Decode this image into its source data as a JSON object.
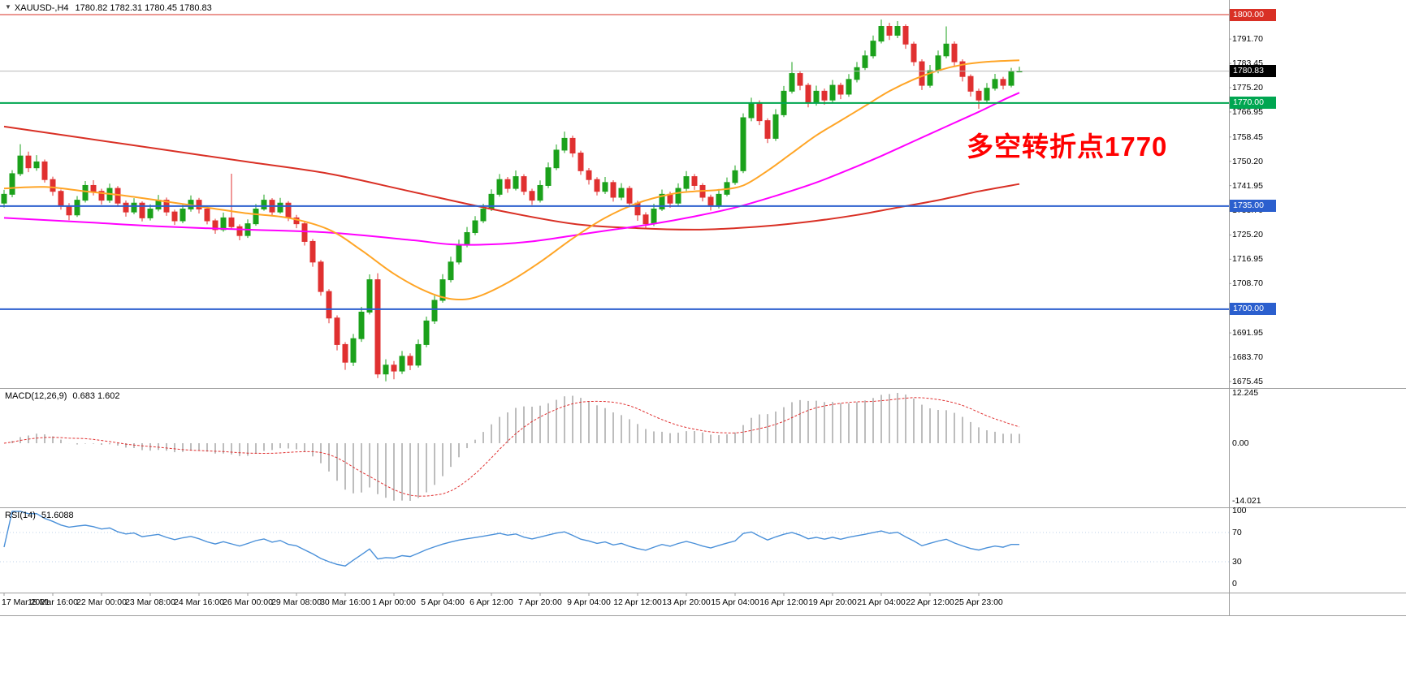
{
  "window": {
    "title_icon": "▼",
    "symbol": "XAUUSD-,H4",
    "ohlc_line": "1780.82 1782.31 1780.45 1780.83"
  },
  "annotation": {
    "text": "多空转折点1770",
    "color": "#ff0000"
  },
  "colors": {
    "bg": "#ffffff",
    "candle_up": "#1ba11b",
    "candle_down": "#e03030",
    "ma_slow": "#d93025",
    "ma_mid": "#ff00ff",
    "ma_fast": "#ffa526",
    "line_1800": "#d93025",
    "line_1770": "#00a651",
    "line_blue": "#2b5fce",
    "line_current": "#b8b8b8",
    "current_box": "#000000",
    "macd_hist": "#bdbdbd",
    "macd_signal": "#e03030",
    "rsi_line": "#4a90d9",
    "rsi_levels": "#bcd2ea",
    "separator": "#9e9e9e",
    "axis_text": "#000000"
  },
  "price_axis": {
    "tick_labels": [
      {
        "price": 1791.7,
        "label": "1791.70"
      },
      {
        "price": 1783.45,
        "label": "1783.45"
      },
      {
        "price": 1775.2,
        "label": "1775.20"
      },
      {
        "price": 1766.95,
        "label": "1766.95"
      },
      {
        "price": 1758.45,
        "label": "1758.45"
      },
      {
        "price": 1750.2,
        "label": "1750.20"
      },
      {
        "price": 1741.95,
        "label": "1741.95"
      },
      {
        "price": 1733.7,
        "label": "1733.70"
      },
      {
        "price": 1725.2,
        "label": "1725.20"
      },
      {
        "price": 1716.95,
        "label": "1716.95"
      },
      {
        "price": 1708.7,
        "label": "1708.70"
      },
      {
        "price": 1691.95,
        "label": "1691.95"
      },
      {
        "price": 1683.7,
        "label": "1683.70"
      },
      {
        "price": 1675.45,
        "label": "1675.45"
      }
    ],
    "boxes": [
      {
        "price": 1800.0,
        "label": "1800.00",
        "bg": "#d93025",
        "kind": "level"
      },
      {
        "price": 1780.83,
        "label": "1780.83",
        "bg": "#000000",
        "kind": "current"
      },
      {
        "price": 1770.0,
        "label": "1770.00",
        "bg": "#00a651",
        "kind": "level"
      },
      {
        "price": 1735.0,
        "label": "1735.00",
        "bg": "#2b5fce",
        "kind": "level"
      },
      {
        "price": 1700.0,
        "label": "1700.00",
        "bg": "#2b5fce",
        "kind": "level"
      }
    ]
  },
  "time_axis": {
    "labels": [
      "17 Mar 2021",
      "18 Mar 16:00",
      "22 Mar 00:00",
      "23 Mar 08:00",
      "24 Mar 16:00",
      "26 Mar 00:00",
      "29 Mar 08:00",
      "30 Mar 16:00",
      "1 Apr 00:00",
      "5 Apr 04:00",
      "6 Apr 12:00",
      "7 Apr 20:00",
      "9 Apr 04:00",
      "12 Apr 12:00",
      "13 Apr 20:00",
      "15 Apr 04:00",
      "16 Apr 12:00",
      "19 Apr 20:00",
      "21 Apr 04:00",
      "22 Apr 12:00",
      "25 Apr 23:00"
    ]
  },
  "indicators": {
    "macd": {
      "label": "MACD(12,26,9)",
      "values": "0.683 1.602",
      "axis_max": "12.245",
      "axis_zero": "0.00",
      "axis_min": "-14.021"
    },
    "rsi": {
      "label": "RSI(14)",
      "value": "51.6088",
      "axis": [
        "100",
        "70",
        "30",
        "0"
      ]
    }
  },
  "chart_data": {
    "type": "candlestick",
    "title": "XAUUSD-,H4",
    "x_tick_labels": [
      "17 Mar 2021",
      "18 Mar 16:00",
      "22 Mar 00:00",
      "23 Mar 08:00",
      "24 Mar 16:00",
      "26 Mar 00:00",
      "29 Mar 08:00",
      "30 Mar 16:00",
      "1 Apr 00:00",
      "5 Apr 04:00",
      "6 Apr 12:00",
      "7 Apr 20:00",
      "9 Apr 04:00",
      "12 Apr 12:00",
      "13 Apr 20:00",
      "15 Apr 04:00",
      "16 Apr 12:00",
      "19 Apr 20:00",
      "21 Apr 04:00",
      "22 Apr 12:00",
      "25 Apr 23:00"
    ],
    "x_tick_step": 6,
    "ylim": [
      1675.45,
      1801.5
    ],
    "y_axis_side": "right",
    "grid": false,
    "candles": [
      [
        1736,
        1740.5,
        1734.5,
        1739
      ],
      [
        1739,
        1747.2,
        1738,
        1746
      ],
      [
        1746,
        1756,
        1745.2,
        1752
      ],
      [
        1752,
        1753.5,
        1746.5,
        1748
      ],
      [
        1748,
        1752.3,
        1747,
        1750
      ],
      [
        1750,
        1750.8,
        1743,
        1744
      ],
      [
        1744,
        1745,
        1738.5,
        1740
      ],
      [
        1740,
        1740.6,
        1733.8,
        1735
      ],
      [
        1735,
        1736,
        1730.2,
        1732
      ],
      [
        1732,
        1738.4,
        1731.3,
        1737
      ],
      [
        1737,
        1743.5,
        1736.2,
        1742
      ],
      [
        1742,
        1743.8,
        1738.6,
        1740
      ],
      [
        1740,
        1740.9,
        1735.5,
        1737
      ],
      [
        1737,
        1742.6,
        1736.1,
        1741
      ],
      [
        1741,
        1741.8,
        1734.8,
        1736
      ],
      [
        1736,
        1736.9,
        1731.4,
        1733
      ],
      [
        1733,
        1737.7,
        1732.2,
        1736
      ],
      [
        1736,
        1736.6,
        1729.8,
        1731
      ],
      [
        1731,
        1735.6,
        1730.1,
        1734
      ],
      [
        1734,
        1738.8,
        1733.2,
        1737
      ],
      [
        1737,
        1737.9,
        1731.7,
        1733
      ],
      [
        1733,
        1733.8,
        1728.6,
        1730
      ],
      [
        1730,
        1735.4,
        1729.2,
        1734
      ],
      [
        1734,
        1738.6,
        1733.1,
        1737
      ],
      [
        1737,
        1737.8,
        1732.5,
        1734
      ],
      [
        1734,
        1734.9,
        1728.8,
        1730
      ],
      [
        1730,
        1730.7,
        1725.6,
        1727
      ],
      [
        1727,
        1732.8,
        1726.3,
        1731
      ],
      [
        1731,
        1746,
        1727,
        1728
      ],
      [
        1728,
        1728.8,
        1723.4,
        1725
      ],
      [
        1725,
        1730.5,
        1724.2,
        1729
      ],
      [
        1729,
        1735.7,
        1728.3,
        1734
      ],
      [
        1734,
        1738.9,
        1733.4,
        1737
      ],
      [
        1737,
        1737.7,
        1731.8,
        1733
      ],
      [
        1733,
        1737.8,
        1732.4,
        1736
      ],
      [
        1736,
        1736.7,
        1729.9,
        1731
      ],
      [
        1731,
        1732,
        1727.5,
        1729
      ],
      [
        1729,
        1729.6,
        1721.6,
        1723
      ],
      [
        1723,
        1723.8,
        1714.4,
        1716
      ],
      [
        1716,
        1716.7,
        1704.6,
        1706
      ],
      [
        1706,
        1706.8,
        1695.2,
        1697
      ],
      [
        1697,
        1697.9,
        1686,
        1688
      ],
      [
        1688,
        1688.8,
        1679.4,
        1682
      ],
      [
        1682,
        1691.6,
        1680.7,
        1690
      ],
      [
        1690,
        1700.8,
        1688.9,
        1699
      ],
      [
        1699,
        1711.8,
        1698.2,
        1710
      ],
      [
        1710,
        1712.2,
        1676.6,
        1678
      ],
      [
        1678,
        1683,
        1675.5,
        1681
      ],
      [
        1681,
        1682.4,
        1676.2,
        1679
      ],
      [
        1679,
        1685.8,
        1678,
        1684
      ],
      [
        1684,
        1685,
        1679.3,
        1681
      ],
      [
        1681,
        1689.7,
        1680.2,
        1688
      ],
      [
        1688,
        1697.5,
        1687.1,
        1696
      ],
      [
        1696,
        1704.6,
        1695,
        1703
      ],
      [
        1703,
        1711.9,
        1702.2,
        1710
      ],
      [
        1710,
        1717.8,
        1709.1,
        1716
      ],
      [
        1716,
        1723.6,
        1715.2,
        1722
      ],
      [
        1722,
        1727.9,
        1721,
        1726
      ],
      [
        1726,
        1731.6,
        1725.1,
        1730
      ],
      [
        1730,
        1735.8,
        1729.2,
        1734
      ],
      [
        1734,
        1740.7,
        1733.3,
        1739
      ],
      [
        1739,
        1745.9,
        1738.2,
        1744
      ],
      [
        1744,
        1744.9,
        1739.5,
        1741
      ],
      [
        1741,
        1747.1,
        1740.3,
        1745
      ],
      [
        1745,
        1745.8,
        1738.8,
        1740
      ],
      [
        1740,
        1740.9,
        1735.4,
        1737
      ],
      [
        1737,
        1743.7,
        1736.2,
        1742
      ],
      [
        1742,
        1749.8,
        1741.1,
        1748
      ],
      [
        1748,
        1755.9,
        1747.2,
        1754
      ],
      [
        1754,
        1760.3,
        1753,
        1758
      ],
      [
        1758,
        1758.9,
        1751.6,
        1753
      ],
      [
        1753,
        1753.8,
        1745.6,
        1747
      ],
      [
        1747,
        1747.9,
        1742.3,
        1744
      ],
      [
        1744,
        1744.8,
        1738.6,
        1740
      ],
      [
        1740,
        1744.9,
        1739.1,
        1743
      ],
      [
        1743,
        1743.8,
        1736.5,
        1738
      ],
      [
        1738,
        1742.8,
        1737,
        1741
      ],
      [
        1741,
        1741.9,
        1734.6,
        1736
      ],
      [
        1736,
        1736.8,
        1730,
        1732
      ],
      [
        1732,
        1732.9,
        1727.4,
        1729
      ],
      [
        1729,
        1735.8,
        1728.2,
        1734
      ],
      [
        1734,
        1740.6,
        1733.3,
        1739
      ],
      [
        1739,
        1739.9,
        1734.4,
        1736
      ],
      [
        1736,
        1742.7,
        1735.2,
        1741
      ],
      [
        1741,
        1746.9,
        1740.1,
        1745
      ],
      [
        1745,
        1745.9,
        1740.5,
        1742
      ],
      [
        1742,
        1742.8,
        1736.6,
        1738
      ],
      [
        1738,
        1738.9,
        1733.5,
        1735
      ],
      [
        1735,
        1740.8,
        1734.2,
        1739
      ],
      [
        1739,
        1744.7,
        1738.3,
        1743
      ],
      [
        1743,
        1748.8,
        1742.2,
        1747
      ],
      [
        1747,
        1766.5,
        1746.2,
        1765
      ],
      [
        1765,
        1771.8,
        1763.8,
        1770
      ],
      [
        1770,
        1770.9,
        1762.5,
        1764
      ],
      [
        1764,
        1764.8,
        1756.4,
        1758
      ],
      [
        1758,
        1767.9,
        1757.1,
        1766
      ],
      [
        1766,
        1775.8,
        1765.2,
        1774
      ],
      [
        1774,
        1783.9,
        1773.2,
        1780
      ],
      [
        1780,
        1780.9,
        1774.3,
        1776
      ],
      [
        1776,
        1776.8,
        1768.5,
        1770
      ],
      [
        1770,
        1775.9,
        1769.1,
        1774
      ],
      [
        1774,
        1774.9,
        1769.4,
        1771
      ],
      [
        1771,
        1777.8,
        1770.2,
        1776
      ],
      [
        1776,
        1776.9,
        1771.3,
        1773
      ],
      [
        1773,
        1779.8,
        1772.1,
        1778
      ],
      [
        1778,
        1783.9,
        1777,
        1782
      ],
      [
        1782,
        1787.8,
        1781.2,
        1786
      ],
      [
        1786,
        1792.9,
        1785.1,
        1791
      ],
      [
        1791,
        1798.3,
        1790.2,
        1796
      ],
      [
        1796,
        1797.2,
        1791.4,
        1793
      ],
      [
        1793,
        1797.8,
        1792,
        1796
      ],
      [
        1796,
        1796.7,
        1788.4,
        1790
      ],
      [
        1790,
        1790.8,
        1782.6,
        1784
      ],
      [
        1784,
        1784.8,
        1774.4,
        1776
      ],
      [
        1776,
        1782.9,
        1775.2,
        1781
      ],
      [
        1781,
        1787.8,
        1780.1,
        1786
      ],
      [
        1786,
        1796,
        1785.2,
        1790
      ],
      [
        1790,
        1790.9,
        1782.5,
        1784
      ],
      [
        1784,
        1784.8,
        1777.3,
        1779
      ],
      [
        1779,
        1779.7,
        1772.2,
        1774
      ],
      [
        1774,
        1774.9,
        1768,
        1771
      ],
      [
        1771,
        1776.8,
        1770.1,
        1775
      ],
      [
        1775,
        1779.9,
        1774.2,
        1778
      ],
      [
        1778,
        1778.9,
        1774.6,
        1776
      ],
      [
        1776,
        1781.9,
        1775.3,
        1780.8
      ],
      [
        1780.82,
        1782.31,
        1780.45,
        1780.83
      ]
    ],
    "overlays": [
      {
        "name": "slow-ma-red",
        "color_key": "ma_slow",
        "points": [
          [
            0,
            1762
          ],
          [
            10,
            1758
          ],
          [
            20,
            1754
          ],
          [
            30,
            1750
          ],
          [
            40,
            1746
          ],
          [
            50,
            1740
          ],
          [
            60,
            1734
          ],
          [
            70,
            1729
          ],
          [
            78,
            1727.5
          ],
          [
            85,
            1727
          ],
          [
            90,
            1727.5
          ],
          [
            95,
            1728.5
          ],
          [
            100,
            1730
          ],
          [
            105,
            1732
          ],
          [
            110,
            1734.5
          ],
          [
            115,
            1737
          ],
          [
            120,
            1740
          ],
          [
            125,
            1742.5
          ]
        ]
      },
      {
        "name": "mid-ma-magenta",
        "color_key": "ma_mid",
        "points": [
          [
            0,
            1731
          ],
          [
            10,
            1729.5
          ],
          [
            20,
            1728
          ],
          [
            30,
            1727
          ],
          [
            40,
            1726
          ],
          [
            50,
            1723.5
          ],
          [
            55,
            1722
          ],
          [
            60,
            1722
          ],
          [
            65,
            1723
          ],
          [
            70,
            1725
          ],
          [
            75,
            1727
          ],
          [
            80,
            1729
          ],
          [
            85,
            1731.5
          ],
          [
            90,
            1734.5
          ],
          [
            95,
            1738.5
          ],
          [
            100,
            1743
          ],
          [
            105,
            1748.5
          ],
          [
            108,
            1752
          ],
          [
            112,
            1757
          ],
          [
            116,
            1762
          ],
          [
            120,
            1767
          ],
          [
            123,
            1771
          ],
          [
            125,
            1773.5
          ]
        ]
      },
      {
        "name": "fast-ma-orange",
        "color_key": "ma_fast",
        "points": [
          [
            0,
            1741
          ],
          [
            5,
            1741.5
          ],
          [
            10,
            1740
          ],
          [
            15,
            1738.5
          ],
          [
            20,
            1736.5
          ],
          [
            25,
            1734.5
          ],
          [
            30,
            1732.5
          ],
          [
            35,
            1731
          ],
          [
            40,
            1727
          ],
          [
            44,
            1720
          ],
          [
            48,
            1712
          ],
          [
            52,
            1706
          ],
          [
            55,
            1703.5
          ],
          [
            58,
            1704
          ],
          [
            62,
            1709
          ],
          [
            66,
            1716
          ],
          [
            70,
            1724
          ],
          [
            74,
            1731
          ],
          [
            78,
            1736
          ],
          [
            82,
            1739
          ],
          [
            85,
            1740
          ],
          [
            88,
            1740.5
          ],
          [
            91,
            1742
          ],
          [
            94,
            1747
          ],
          [
            97,
            1753
          ],
          [
            100,
            1759
          ],
          [
            103,
            1764
          ],
          [
            106,
            1769
          ],
          [
            109,
            1774
          ],
          [
            112,
            1778
          ],
          [
            115,
            1781
          ],
          [
            118,
            1783
          ],
          [
            121,
            1784
          ],
          [
            125,
            1784.5
          ]
        ]
      }
    ],
    "hlines": [
      {
        "price": 1800.0,
        "color_key": "line_1800",
        "width": 1
      },
      {
        "price": 1780.83,
        "color_key": "line_current",
        "width": 1
      },
      {
        "price": 1770.0,
        "color_key": "line_1770",
        "width": 2
      },
      {
        "price": 1735.0,
        "color_key": "line_blue",
        "width": 2
      },
      {
        "price": 1700.0,
        "color_key": "line_blue",
        "width": 2
      }
    ],
    "macd": {
      "fast": 12,
      "slow": 26,
      "signal": 9,
      "current_hist": 0.683,
      "current_signal": 1.602,
      "plot_max": 12.245,
      "plot_min": -14.021
    },
    "rsi": {
      "period": 14,
      "current": 51.6088,
      "levels": [
        70,
        30
      ],
      "range": [
        0,
        100
      ]
    }
  }
}
